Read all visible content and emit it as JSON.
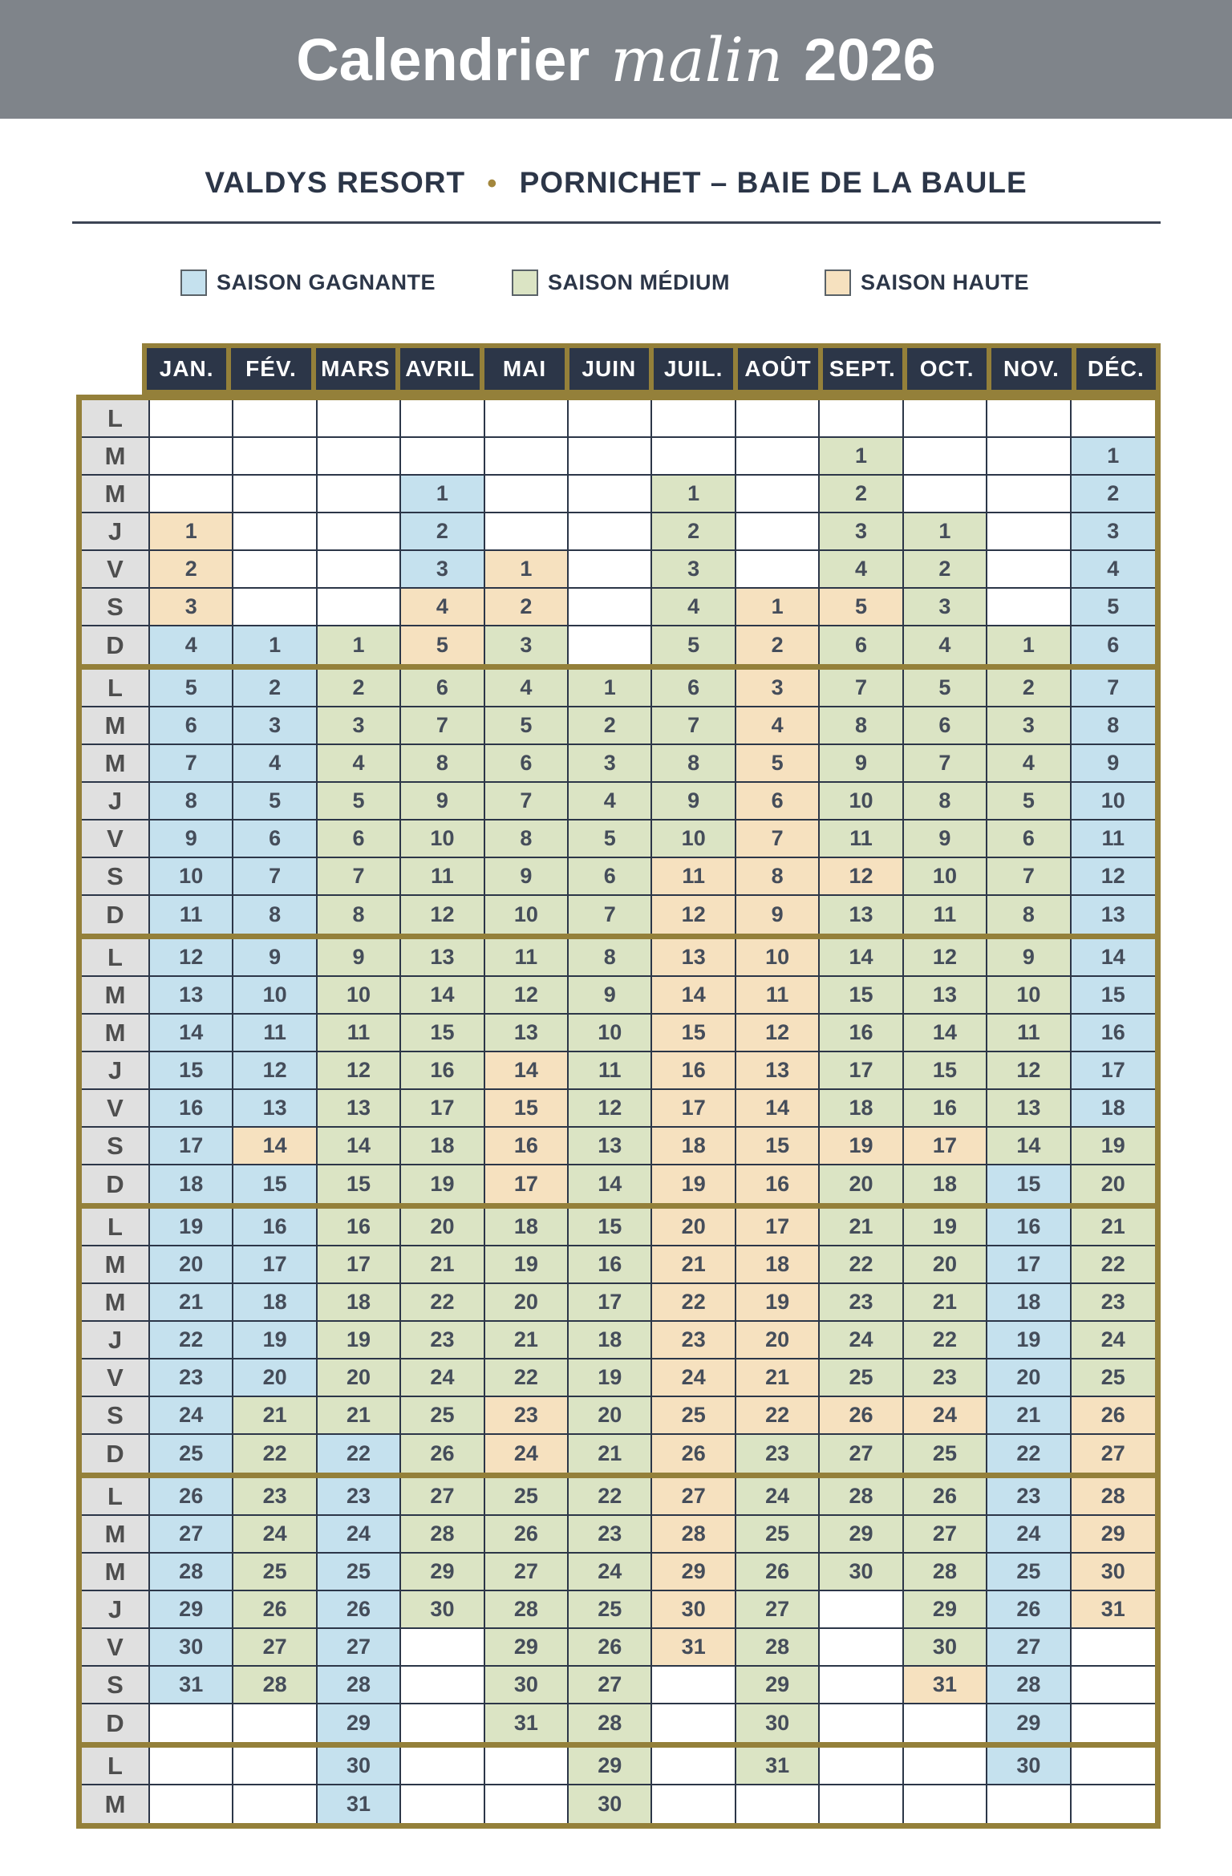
{
  "header": {
    "title_main": "Calendrier",
    "title_script": "malin",
    "title_year": "2026"
  },
  "subtitle": {
    "left": "VALDYS RESORT",
    "separator": "•",
    "right": "PORNICHET – BAIE DE LA BAULE"
  },
  "legend": [
    {
      "label": "SAISON GAGNANTE",
      "season": "g",
      "color": "#c5e1ee"
    },
    {
      "label": "SAISON MÉDIUM",
      "season": "m",
      "color": "#dbe4c4"
    },
    {
      "label": "SAISON HAUTE",
      "season": "h",
      "color": "#f6e1bf"
    }
  ],
  "colors": {
    "band_gray": "#7f848a",
    "navy": "#2c3648",
    "olive": "#94803a",
    "season_gagnante": "#c5e1ee",
    "season_medium": "#dbe4c4",
    "season_haute": "#f6e1bf",
    "day_col_bg": "#e0e0e0",
    "rule": "#3c4454",
    "bullet_gold": "#a3873d",
    "number_text": "#454d5a"
  },
  "calendar": {
    "months": [
      "JAN.",
      "FÉV.",
      "MARS",
      "AVRIL",
      "MAI",
      "JUIN",
      "JUIL.",
      "AOÛT",
      "SEPT.",
      "OCT.",
      "NOV.",
      "DÉC."
    ],
    "day_rows": [
      "L",
      "M",
      "M",
      "J",
      "V",
      "S",
      "D",
      "L",
      "M",
      "M",
      "J",
      "V",
      "S",
      "D",
      "L",
      "M",
      "M",
      "J",
      "V",
      "S",
      "D",
      "L",
      "M",
      "M",
      "J",
      "V",
      "S",
      "D",
      "L",
      "M",
      "M",
      "J",
      "V",
      "S",
      "D",
      "L",
      "M"
    ],
    "blocks": [
      7,
      7,
      7,
      7,
      7,
      2
    ],
    "cells": {
      "JAN.": [
        "",
        "",
        "",
        "1h",
        "2h",
        "3h",
        "4g",
        "5g",
        "6g",
        "7g",
        "8g",
        "9g",
        "10g",
        "11g",
        "12g",
        "13g",
        "14g",
        "15g",
        "16g",
        "17g",
        "18g",
        "19g",
        "20g",
        "21g",
        "22g",
        "23g",
        "24g",
        "25g",
        "26g",
        "27g",
        "28g",
        "29g",
        "30g",
        "31g",
        "",
        "",
        ""
      ],
      "FÉV.": [
        "",
        "",
        "",
        "",
        "",
        "",
        "1g",
        "2g",
        "3g",
        "4g",
        "5g",
        "6g",
        "7g",
        "8g",
        "9g",
        "10g",
        "11g",
        "12g",
        "13g",
        "14h",
        "15g",
        "16g",
        "17g",
        "18g",
        "19g",
        "20g",
        "21m",
        "22m",
        "23m",
        "24m",
        "25m",
        "26m",
        "27m",
        "28m",
        "",
        "",
        ""
      ],
      "MARS": [
        "",
        "",
        "",
        "",
        "",
        "",
        "1m",
        "2m",
        "3m",
        "4m",
        "5m",
        "6m",
        "7m",
        "8m",
        "9m",
        "10m",
        "11m",
        "12m",
        "13m",
        "14m",
        "15m",
        "16m",
        "17m",
        "18m",
        "19m",
        "20m",
        "21m",
        "22g",
        "23g",
        "24g",
        "25g",
        "26g",
        "27g",
        "28g",
        "29g",
        "30g",
        "31g"
      ],
      "AVRIL": [
        "",
        "",
        "1g",
        "2g",
        "3g",
        "4h",
        "5h",
        "6m",
        "7m",
        "8m",
        "9m",
        "10m",
        "11m",
        "12m",
        "13m",
        "14m",
        "15m",
        "16m",
        "17m",
        "18m",
        "19m",
        "20m",
        "21m",
        "22m",
        "23m",
        "24m",
        "25m",
        "26m",
        "27m",
        "28m",
        "29m",
        "30m",
        "",
        "",
        "",
        "",
        ""
      ],
      "MAI": [
        "",
        "",
        "",
        "",
        "1h",
        "2h",
        "3m",
        "4m",
        "5m",
        "6m",
        "7m",
        "8m",
        "9m",
        "10m",
        "11m",
        "12m",
        "13m",
        "14h",
        "15h",
        "16h",
        "17h",
        "18m",
        "19m",
        "20m",
        "21m",
        "22m",
        "23h",
        "24h",
        "25m",
        "26m",
        "27m",
        "28m",
        "29m",
        "30m",
        "31m",
        "",
        ""
      ],
      "JUIN": [
        "",
        "",
        "",
        "",
        "",
        "",
        "",
        "1m",
        "2m",
        "3m",
        "4m",
        "5m",
        "6m",
        "7m",
        "8m",
        "9m",
        "10m",
        "11m",
        "12m",
        "13m",
        "14m",
        "15m",
        "16m",
        "17m",
        "18m",
        "19m",
        "20m",
        "21m",
        "22m",
        "23m",
        "24m",
        "25m",
        "26m",
        "27m",
        "28m",
        "29m",
        "30m"
      ],
      "JUIL.": [
        "",
        "",
        "1m",
        "2m",
        "3m",
        "4m",
        "5m",
        "6m",
        "7m",
        "8m",
        "9m",
        "10m",
        "11h",
        "12h",
        "13h",
        "14h",
        "15h",
        "16h",
        "17h",
        "18h",
        "19h",
        "20h",
        "21h",
        "22h",
        "23h",
        "24h",
        "25h",
        "26h",
        "27h",
        "28h",
        "29h",
        "30h",
        "31h",
        "",
        "",
        "",
        ""
      ],
      "AOÛT": [
        "",
        "",
        "",
        "",
        "",
        "1h",
        "2h",
        "3h",
        "4h",
        "5h",
        "6h",
        "7h",
        "8h",
        "9h",
        "10h",
        "11h",
        "12h",
        "13h",
        "14h",
        "15h",
        "16h",
        "17h",
        "18h",
        "19h",
        "20h",
        "21h",
        "22h",
        "23m",
        "24m",
        "25m",
        "26m",
        "27m",
        "28m",
        "29m",
        "30m",
        "31m",
        ""
      ],
      "SEPT.": [
        "",
        "1m",
        "2m",
        "3m",
        "4m",
        "5h",
        "6m",
        "7m",
        "8m",
        "9m",
        "10m",
        "11m",
        "12h",
        "13m",
        "14m",
        "15m",
        "16m",
        "17m",
        "18m",
        "19h",
        "20m",
        "21m",
        "22m",
        "23m",
        "24m",
        "25m",
        "26h",
        "27m",
        "28m",
        "29m",
        "30m",
        "",
        "",
        "",
        "",
        "",
        ""
      ],
      "OCT.": [
        "",
        "",
        "",
        "1m",
        "2m",
        "3m",
        "4m",
        "5m",
        "6m",
        "7m",
        "8m",
        "9m",
        "10m",
        "11m",
        "12m",
        "13m",
        "14m",
        "15m",
        "16m",
        "17h",
        "18m",
        "19m",
        "20m",
        "21m",
        "22m",
        "23m",
        "24h",
        "25m",
        "26m",
        "27m",
        "28m",
        "29m",
        "30m",
        "31h",
        "",
        "",
        ""
      ],
      "NOV.": [
        "",
        "",
        "",
        "",
        "",
        "",
        "1m",
        "2m",
        "3m",
        "4m",
        "5m",
        "6m",
        "7m",
        "8m",
        "9m",
        "10m",
        "11m",
        "12m",
        "13m",
        "14m",
        "15g",
        "16g",
        "17g",
        "18g",
        "19g",
        "20g",
        "21g",
        "22g",
        "23g",
        "24g",
        "25g",
        "26g",
        "27g",
        "28g",
        "29g",
        "30g",
        ""
      ],
      "DÉC.": [
        "",
        "1g",
        "2g",
        "3g",
        "4g",
        "5g",
        "6g",
        "7g",
        "8g",
        "9g",
        "10g",
        "11g",
        "12g",
        "13g",
        "14g",
        "15g",
        "16g",
        "17g",
        "18g",
        "19m",
        "20m",
        "21m",
        "22m",
        "23m",
        "24m",
        "25m",
        "26h",
        "27h",
        "28h",
        "29h",
        "30h",
        "31h",
        "",
        "",
        "",
        "",
        ""
      ]
    }
  }
}
